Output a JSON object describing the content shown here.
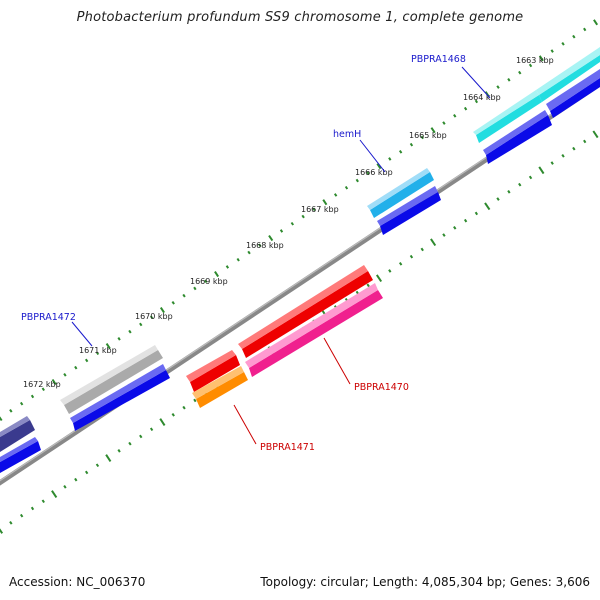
{
  "title": "Photobacterium profundum SS9 chromosome 1, complete genome",
  "footer": {
    "accession": "Accession: NC_006370",
    "summary": "Topology: circular; Length: 4,085,304 bp; Genes: 3,606"
  },
  "scale_labels": [
    "1663 kbp",
    "1664 kbp",
    "1665 kbp",
    "1666 kbp",
    "1667 kbp",
    "1668 kbp",
    "1669 kbp",
    "1670 kbp",
    "1671 kbp",
    "1672 kbp"
  ],
  "gene_labels": {
    "pbpra1468": "PBPRA1468",
    "hemh": "hemH",
    "pbpra1472": "PBPRA1472",
    "pbpra1470": "PBPRA1470",
    "pbpra1471": "PBPRA1471"
  },
  "colors": {
    "cyan": "#22dde0",
    "sky": "#22b0ea",
    "blue": "#0a0ae8",
    "navy": "#3a3a8e",
    "grey": "#b8b8b8",
    "red": "#ee0000",
    "pink": "#f0208e",
    "orange": "#ff8c00",
    "tick": "#2e8a2e",
    "backbone": "#777777",
    "label_blue": "#1a1acc",
    "label_red": "#cc0000"
  }
}
